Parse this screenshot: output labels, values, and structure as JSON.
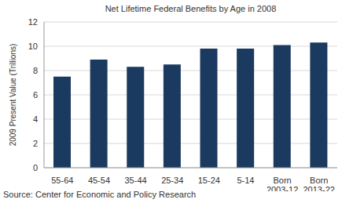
{
  "chart_data": {
    "type": "bar",
    "title": "Net Lifetime Federal Benefits by Age in 2008",
    "y_label": "2009 Present Value (Trillions)",
    "source": "Source: Center for Economic and Policy Research",
    "categories": [
      "55-64",
      "45-54",
      "35-44",
      "25-34",
      "15-24",
      "5-14",
      "Born 2003-12",
      "Born 2013-22"
    ],
    "values": [
      7.5,
      8.9,
      8.3,
      8.5,
      9.8,
      9.8,
      10.1,
      10.3
    ],
    "color": "#1b3a5f",
    "ylim": [
      0,
      12
    ],
    "yticks": [
      0,
      2,
      4,
      6,
      8,
      10,
      12
    ],
    "grid": true
  }
}
